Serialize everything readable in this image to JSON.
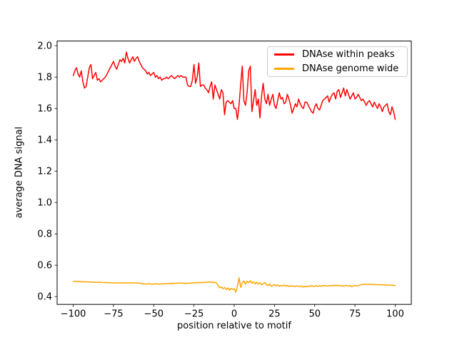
{
  "figure": {
    "background": "#ffffff",
    "xlabel": "position relative to motif",
    "ylabel": "average DNA signal"
  },
  "legend": {
    "position": "upper right",
    "items": [
      {
        "label": "DNAse within peaks",
        "color": "#ff0000"
      },
      {
        "label": "DNAse genome wide",
        "color": "#ffa500"
      }
    ]
  },
  "chart_data": {
    "type": "line",
    "title": "",
    "xlabel": "position relative to motif",
    "ylabel": "average DNA signal",
    "xlim": [
      -110,
      110
    ],
    "ylim": [
      0.35,
      2.03
    ],
    "xticks": [
      -100,
      -75,
      -50,
      -25,
      0,
      25,
      50,
      75,
      100
    ],
    "yticks": [
      0.4,
      0.6,
      0.8,
      1.0,
      1.2,
      1.4,
      1.6,
      1.8,
      2.0
    ],
    "grid": false,
    "legend_position": "upper right",
    "frame_color": "#000000",
    "x": [
      -100,
      -99,
      -98,
      -97,
      -96,
      -95,
      -94,
      -93,
      -92,
      -91,
      -90,
      -89,
      -88,
      -87,
      -86,
      -85,
      -84,
      -83,
      -82,
      -81,
      -80,
      -79,
      -78,
      -77,
      -76,
      -75,
      -74,
      -73,
      -72,
      -71,
      -70,
      -69,
      -68,
      -67,
      -66,
      -65,
      -64,
      -63,
      -62,
      -61,
      -60,
      -59,
      -58,
      -57,
      -56,
      -55,
      -54,
      -53,
      -52,
      -51,
      -50,
      -49,
      -48,
      -47,
      -46,
      -45,
      -44,
      -43,
      -42,
      -41,
      -40,
      -39,
      -38,
      -37,
      -36,
      -35,
      -34,
      -33,
      -32,
      -31,
      -30,
      -29,
      -28,
      -27,
      -26,
      -25,
      -24,
      -23,
      -22,
      -21,
      -20,
      -19,
      -18,
      -17,
      -16,
      -15,
      -14,
      -13,
      -12,
      -11,
      -10,
      -9,
      -8,
      -7,
      -6,
      -5,
      -4,
      -3,
      -2,
      -1,
      0,
      1,
      2,
      3,
      4,
      5,
      6,
      7,
      8,
      9,
      10,
      11,
      12,
      13,
      14,
      15,
      16,
      17,
      18,
      19,
      20,
      21,
      22,
      23,
      24,
      25,
      26,
      27,
      28,
      29,
      30,
      31,
      32,
      33,
      34,
      35,
      36,
      37,
      38,
      39,
      40,
      41,
      42,
      43,
      44,
      45,
      46,
      47,
      48,
      49,
      50,
      51,
      52,
      53,
      54,
      55,
      56,
      57,
      58,
      59,
      60,
      61,
      62,
      63,
      64,
      65,
      66,
      67,
      68,
      69,
      70,
      71,
      72,
      73,
      74,
      75,
      76,
      77,
      78,
      79,
      80,
      81,
      82,
      83,
      84,
      85,
      86,
      87,
      88,
      89,
      90,
      91,
      92,
      93,
      94,
      95,
      96,
      97,
      98,
      99,
      100
    ],
    "series": [
      {
        "name": "DNAse within peaks",
        "color": "#ff0000",
        "values": [
          1.81,
          1.84,
          1.86,
          1.82,
          1.8,
          1.84,
          1.77,
          1.73,
          1.74,
          1.8,
          1.86,
          1.88,
          1.79,
          1.81,
          1.83,
          1.78,
          1.79,
          1.77,
          1.78,
          1.79,
          1.8,
          1.82,
          1.84,
          1.86,
          1.88,
          1.9,
          1.87,
          1.85,
          1.88,
          1.91,
          1.9,
          1.92,
          1.89,
          1.96,
          1.92,
          1.89,
          1.91,
          1.93,
          1.9,
          1.92,
          1.93,
          1.9,
          1.88,
          1.86,
          1.85,
          1.84,
          1.82,
          1.83,
          1.81,
          1.82,
          1.83,
          1.8,
          1.81,
          1.79,
          1.8,
          1.78,
          1.79,
          1.79,
          1.8,
          1.79,
          1.8,
          1.81,
          1.8,
          1.79,
          1.8,
          1.81,
          1.8,
          1.81,
          1.8,
          1.8,
          1.8,
          1.75,
          1.74,
          1.74,
          1.78,
          1.88,
          1.76,
          1.8,
          1.89,
          1.74,
          1.75,
          1.75,
          1.73,
          1.72,
          1.7,
          1.74,
          1.77,
          1.66,
          1.75,
          1.72,
          1.69,
          1.66,
          1.72,
          1.7,
          1.56,
          1.64,
          1.65,
          1.64,
          1.63,
          1.65,
          1.6,
          1.6,
          1.53,
          1.62,
          1.75,
          1.87,
          1.65,
          1.62,
          1.7,
          1.84,
          1.87,
          1.58,
          1.65,
          1.72,
          1.62,
          1.66,
          1.54,
          1.68,
          1.76,
          1.66,
          1.63,
          1.69,
          1.62,
          1.66,
          1.69,
          1.62,
          1.6,
          1.65,
          1.7,
          1.66,
          1.67,
          1.63,
          1.64,
          1.69,
          1.66,
          1.62,
          1.57,
          1.6,
          1.63,
          1.61,
          1.66,
          1.63,
          1.61,
          1.6,
          1.64,
          1.64,
          1.62,
          1.6,
          1.58,
          1.57,
          1.61,
          1.63,
          1.6,
          1.59,
          1.62,
          1.65,
          1.66,
          1.67,
          1.68,
          1.64,
          1.67,
          1.69,
          1.7,
          1.66,
          1.71,
          1.72,
          1.67,
          1.7,
          1.73,
          1.68,
          1.72,
          1.69,
          1.66,
          1.68,
          1.7,
          1.66,
          1.67,
          1.69,
          1.67,
          1.65,
          1.66,
          1.64,
          1.62,
          1.64,
          1.65,
          1.63,
          1.61,
          1.64,
          1.62,
          1.6,
          1.63,
          1.61,
          1.58,
          1.61,
          1.62,
          1.63,
          1.58,
          1.56,
          1.61,
          1.58,
          1.53
        ]
      },
      {
        "name": "DNAse genome wide",
        "color": "#ffa500",
        "values": [
          0.497,
          0.496,
          0.497,
          0.495,
          0.496,
          0.494,
          0.495,
          0.494,
          0.493,
          0.494,
          0.493,
          0.492,
          0.493,
          0.491,
          0.492,
          0.49,
          0.491,
          0.492,
          0.49,
          0.489,
          0.49,
          0.489,
          0.488,
          0.489,
          0.487,
          0.488,
          0.487,
          0.488,
          0.486,
          0.487,
          0.488,
          0.486,
          0.487,
          0.485,
          0.486,
          0.487,
          0.486,
          0.487,
          0.488,
          0.487,
          0.488,
          0.486,
          0.484,
          0.482,
          0.48,
          0.481,
          0.479,
          0.482,
          0.48,
          0.478,
          0.48,
          0.482,
          0.479,
          0.481,
          0.478,
          0.482,
          0.48,
          0.483,
          0.481,
          0.484,
          0.482,
          0.485,
          0.481,
          0.486,
          0.483,
          0.487,
          0.484,
          0.488,
          0.485,
          0.482,
          0.486,
          0.483,
          0.488,
          0.484,
          0.489,
          0.485,
          0.49,
          0.486,
          0.491,
          0.487,
          0.492,
          0.488,
          0.493,
          0.489,
          0.494,
          0.49,
          0.495,
          0.488,
          0.492,
          0.486,
          0.47,
          0.455,
          0.462,
          0.45,
          0.458,
          0.445,
          0.455,
          0.44,
          0.452,
          0.446,
          0.45,
          0.428,
          0.465,
          0.52,
          0.458,
          0.488,
          0.5,
          0.478,
          0.498,
          0.488,
          0.502,
          0.484,
          0.494,
          0.48,
          0.492,
          0.479,
          0.488,
          0.475,
          0.483,
          0.49,
          0.476,
          0.47,
          0.481,
          0.466,
          0.472,
          0.477,
          0.468,
          0.474,
          0.465,
          0.471,
          0.468,
          0.473,
          0.466,
          0.471,
          0.464,
          0.47,
          0.465,
          0.468,
          0.463,
          0.469,
          0.466,
          0.462,
          0.468,
          0.46,
          0.466,
          0.461,
          0.467,
          0.464,
          0.47,
          0.466,
          0.465,
          0.47,
          0.464,
          0.469,
          0.465,
          0.471,
          0.467,
          0.47,
          0.466,
          0.469,
          0.468,
          0.472,
          0.467,
          0.474,
          0.469,
          0.472,
          0.466,
          0.471,
          0.465,
          0.47,
          0.472,
          0.466,
          0.47,
          0.463,
          0.468,
          0.471,
          0.467,
          0.47,
          0.474,
          0.476,
          0.477,
          0.478,
          0.477,
          0.478,
          0.477,
          0.478,
          0.477,
          0.476,
          0.477,
          0.476,
          0.475,
          0.476,
          0.475,
          0.474,
          0.475,
          0.474,
          0.473,
          0.472,
          0.473,
          0.471,
          0.47
        ]
      }
    ]
  }
}
